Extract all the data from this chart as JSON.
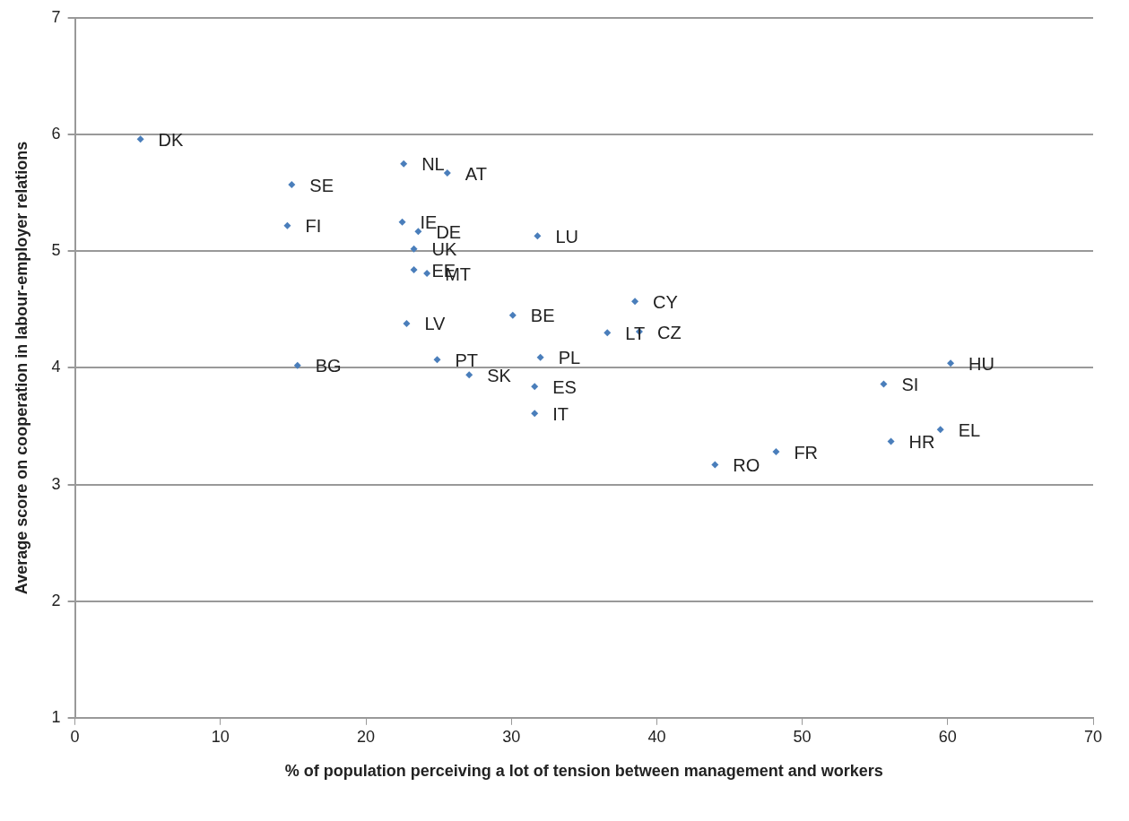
{
  "chart_data": {
    "type": "scatter",
    "xlabel": "% of population perceiving a lot of tension between management and workers",
    "ylabel": "Average score on cooperation in labour-employer relations",
    "x": [
      4.5,
      22.6,
      25.6,
      14.9,
      14.6,
      22.5,
      23.6,
      23.3,
      23.3,
      24.2,
      31.8,
      38.5,
      30.1,
      22.8,
      36.6,
      38.8,
      32.0,
      24.9,
      27.1,
      15.3,
      31.6,
      31.6,
      60.2,
      55.6,
      59.5,
      56.1,
      48.2,
      44.0
    ],
    "series": [
      {
        "color": "#4a7ebb",
        "values": [
          5.96,
          5.75,
          5.67,
          5.57,
          5.22,
          5.25,
          5.17,
          5.02,
          4.84,
          4.81,
          5.13,
          4.57,
          4.45,
          4.38,
          4.3,
          4.31,
          4.09,
          4.07,
          3.94,
          4.02,
          3.84,
          3.61,
          4.04,
          3.86,
          3.47,
          3.37,
          3.28,
          3.17
        ]
      }
    ],
    "annotations": [
      {
        "text": "DK",
        "x": 4.5,
        "y": 5.96
      },
      {
        "text": "NL",
        "x": 22.6,
        "y": 5.75
      },
      {
        "text": "AT",
        "x": 25.6,
        "y": 5.67
      },
      {
        "text": "SE",
        "x": 14.9,
        "y": 5.57
      },
      {
        "text": "FI",
        "x": 14.6,
        "y": 5.22
      },
      {
        "text": "IE",
        "x": 22.5,
        "y": 5.25
      },
      {
        "text": "DE",
        "x": 23.6,
        "y": 5.17
      },
      {
        "text": "UK",
        "x": 23.3,
        "y": 5.02
      },
      {
        "text": "EE",
        "x": 23.3,
        "y": 4.84
      },
      {
        "text": "MT",
        "x": 24.2,
        "y": 4.81
      },
      {
        "text": "LU",
        "x": 31.8,
        "y": 5.13
      },
      {
        "text": "CY",
        "x": 38.5,
        "y": 4.57
      },
      {
        "text": "BE",
        "x": 30.1,
        "y": 4.45
      },
      {
        "text": "LV",
        "x": 22.8,
        "y": 4.38
      },
      {
        "text": "LT",
        "x": 36.6,
        "y": 4.3
      },
      {
        "text": "CZ",
        "x": 38.8,
        "y": 4.31
      },
      {
        "text": "PL",
        "x": 32.0,
        "y": 4.09
      },
      {
        "text": "PT",
        "x": 24.9,
        "y": 4.07
      },
      {
        "text": "SK",
        "x": 27.1,
        "y": 3.94
      },
      {
        "text": "BG",
        "x": 15.3,
        "y": 4.02
      },
      {
        "text": "ES",
        "x": 31.6,
        "y": 3.84
      },
      {
        "text": "IT",
        "x": 31.6,
        "y": 3.61
      },
      {
        "text": "HU",
        "x": 60.2,
        "y": 4.04
      },
      {
        "text": "SI",
        "x": 55.6,
        "y": 3.86
      },
      {
        "text": "EL",
        "x": 59.5,
        "y": 3.47
      },
      {
        "text": "HR",
        "x": 56.1,
        "y": 3.37
      },
      {
        "text": "FR",
        "x": 48.2,
        "y": 3.28
      },
      {
        "text": "RO",
        "x": 44.0,
        "y": 3.17
      }
    ],
    "xlim": [
      0,
      70
    ],
    "xticks": [
      0,
      10,
      20,
      30,
      40,
      50,
      60,
      70
    ],
    "ylim": [
      1,
      7
    ],
    "yticks": [
      1,
      2,
      3,
      4,
      5,
      6,
      7
    ],
    "grid": "y",
    "marker": "diamond",
    "legend": false
  }
}
